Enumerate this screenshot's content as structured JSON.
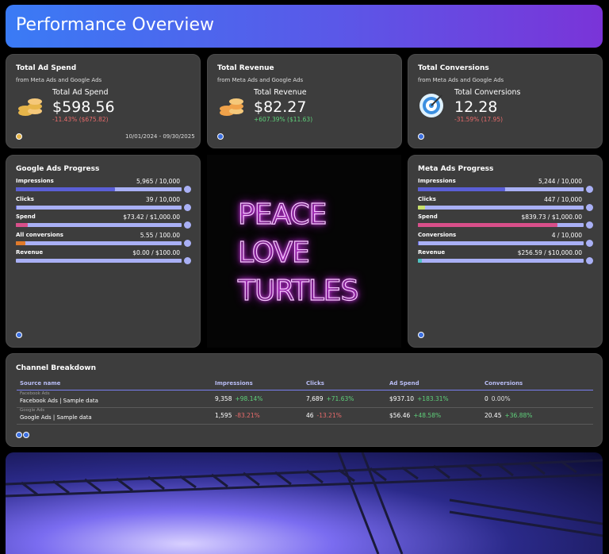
{
  "header": {
    "title": "Performance Overview"
  },
  "kpis": [
    {
      "title": "Total Ad Spend",
      "subtitle": "from Meta Ads and Google Ads",
      "label": "Total Ad Spend",
      "value": "$598.56",
      "change": "-11.43% ($675.82)",
      "date_range": "10/01/2024 - 09/30/2025"
    },
    {
      "title": "Total Revenue",
      "subtitle": "from Meta Ads and Google Ads",
      "label": "Total Revenue",
      "value": "$82.27",
      "change": "+607.39% ($11.63)"
    },
    {
      "title": "Total Conversions",
      "subtitle": "from Meta Ads and Google Ads",
      "label": "Total Conversions",
      "value": "12.28",
      "change": "-31.59% (17.95)"
    }
  ],
  "progress": [
    {
      "title": "Google Ads Progress",
      "rows": [
        {
          "name": "Impressions",
          "value": 5965,
          "max": 10000,
          "label": "5,965 / 10,000",
          "color": "#5b5fd6"
        },
        {
          "name": "Clicks",
          "value": 39,
          "max": 10000,
          "label": "39 / 10,000",
          "color": "#5b5fd6"
        },
        {
          "name": "Spend",
          "value": 73.42,
          "max": 1000,
          "label": "$73.42 / $1,000.00",
          "color": "#d94f8a"
        },
        {
          "name": "All conversions",
          "value": 5.55,
          "max": 100,
          "label": "5.55 / 100.00",
          "color": "#e07a2a"
        },
        {
          "name": "Revenue",
          "value": 0,
          "max": 100,
          "label": "$0.00 / $100.00",
          "color": "#5b5fd6"
        }
      ]
    },
    {
      "title": "Meta Ads Progress",
      "rows": [
        {
          "name": "Impressions",
          "value": 5244,
          "max": 10000,
          "label": "5,244 / 10,000",
          "color": "#5b5fd6"
        },
        {
          "name": "Clicks",
          "value": 447,
          "max": 10000,
          "label": "447 / 10,000",
          "color": "#c8e06a"
        },
        {
          "name": "Spend",
          "value": 839.73,
          "max": 1000,
          "label": "$839.73 / $1,000.00",
          "color": "#d94f8a"
        },
        {
          "name": "Conversions",
          "value": 4,
          "max": 10000,
          "label": "4 / 10,000",
          "color": "#5b5fd6"
        },
        {
          "name": "Revenue",
          "value": 256.59,
          "max": 10000,
          "label": "$256.59 / $10,000.00",
          "color": "#4fc3c3"
        }
      ]
    }
  ],
  "center_image": {
    "lines": [
      "PEACE",
      "LOVE",
      "TURTLES"
    ]
  },
  "table": {
    "title": "Channel Breakdown",
    "columns": [
      "Source name",
      "Impressions",
      "Clicks",
      "Ad Spend",
      "Conversions"
    ],
    "rows": [
      {
        "source": "Facebook Ads",
        "name": "Facebook Ads | Sample data",
        "cells": [
          {
            "value": "9,358",
            "change": "+98.14%"
          },
          {
            "value": "7,689",
            "change": "+71.63%"
          },
          {
            "value": "$937.10",
            "change": "+183.31%"
          },
          {
            "value": "0",
            "change": "0.00%"
          }
        ]
      },
      {
        "source": "Google Ads",
        "name": "Google Ads | Sample data",
        "cells": [
          {
            "value": "1,595",
            "change": "-83.21%"
          },
          {
            "value": "46",
            "change": "-13.21%"
          },
          {
            "value": "$56.46",
            "change": "+48.58%"
          },
          {
            "value": "20.45",
            "change": "+36.88%"
          }
        ]
      }
    ]
  }
}
